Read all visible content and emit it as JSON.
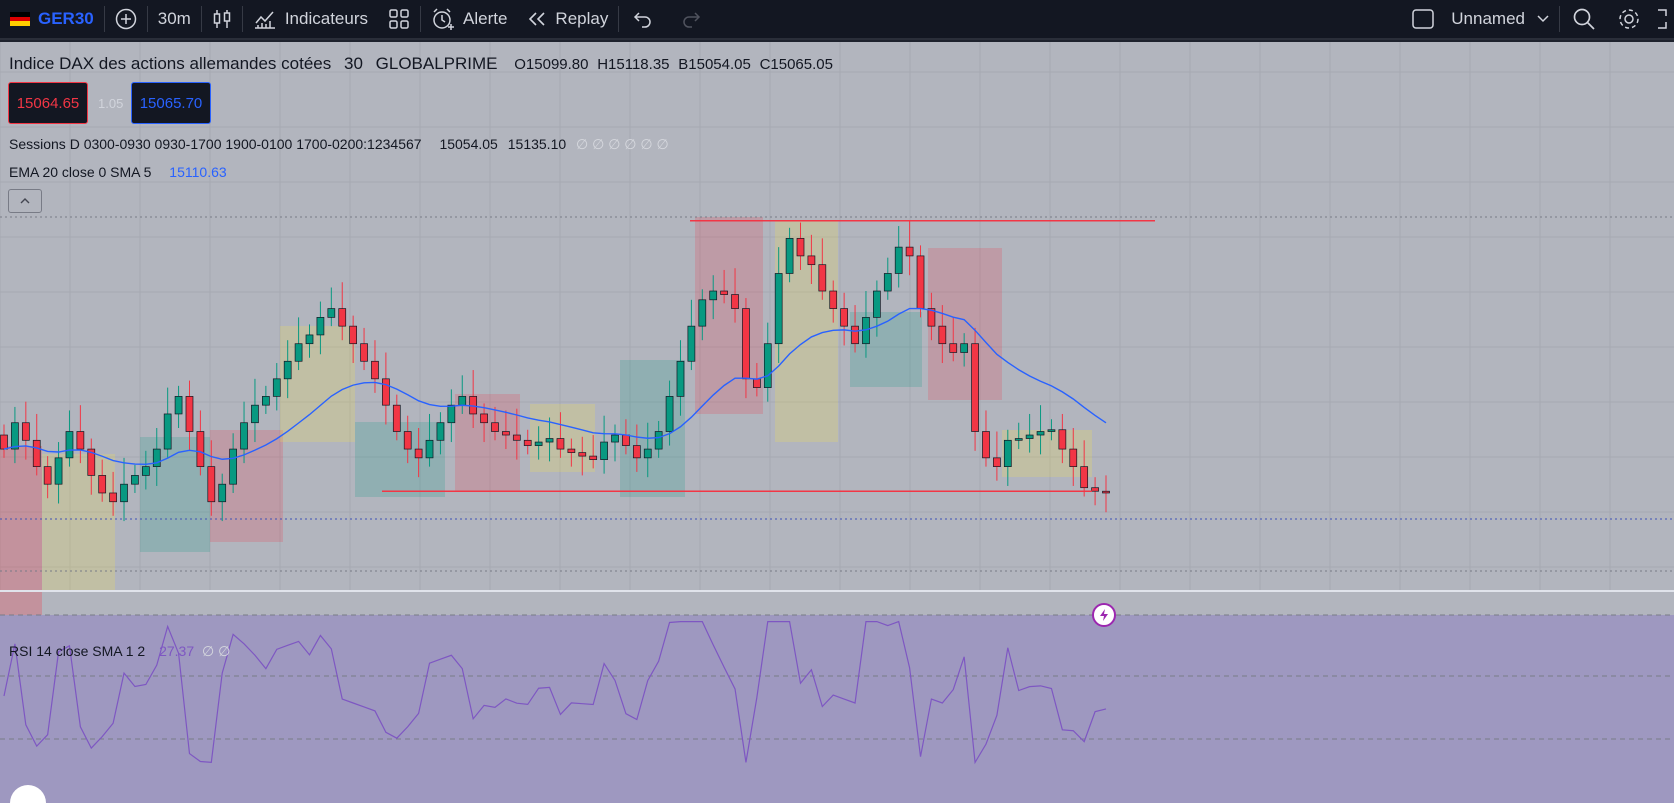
{
  "toolbar": {
    "symbol": "GER30",
    "interval": "30m",
    "indicators_label": "Indicateurs",
    "alert_label": "Alerte",
    "replay_label": "Replay",
    "layout_name": "Unnamed"
  },
  "legend": {
    "title": "Indice DAX des actions allemandes cotées",
    "interval": "30",
    "exchange": "GLOBALPRIME",
    "open": "O15099.80",
    "high": "H15118.35",
    "low": "B15054.05",
    "close": "C15065.05",
    "sell_price": "15064.65",
    "spread": "1.05",
    "buy_price": "15065.70",
    "sessions_label": "Sessions D 0300-0930 0930-1700 1900-0100 1700-0200:1234567",
    "sessions_v1": "15054.05",
    "sessions_v2": "15135.10",
    "sessions_na": "∅ ∅ ∅ ∅ ∅ ∅",
    "ema_label": "EMA 20 close 0 SMA 5",
    "ema_value": "15110.63",
    "collapse_icon": "chevron-up-icon"
  },
  "rsi": {
    "label": "RSI 14 close SMA 1 2",
    "value": "27.37",
    "na": "∅ ∅"
  },
  "colors": {
    "up": "#089981",
    "down": "#f23645",
    "ema": "#2962ff",
    "rsi": "#7e57c2",
    "level_line": "#f23645"
  },
  "chart_data": {
    "type": "candlestick",
    "symbol": "GER30",
    "interval": "30",
    "close_series": [
      15090,
      15105,
      15095,
      15080,
      15070,
      15085,
      15100,
      15090,
      15075,
      15065,
      15060,
      15070,
      15075,
      15080,
      15090,
      15110,
      15120,
      15100,
      15080,
      15060,
      15070,
      15090,
      15105,
      15115,
      15120,
      15130,
      15140,
      15150,
      15155,
      15165,
      15170,
      15160,
      15150,
      15140,
      15130,
      15115,
      15100,
      15090,
      15085,
      15095,
      15105,
      15115,
      15120,
      15110,
      15105,
      15100,
      15098,
      15095,
      15092,
      15094,
      15096,
      15090,
      15088,
      15086,
      15084,
      15094,
      15098,
      15092,
      15085,
      15090,
      15100,
      15120,
      15140,
      15160,
      15175,
      15180,
      15178,
      15170,
      15130,
      15125,
      15150,
      15190,
      15210,
      15200,
      15195,
      15180,
      15170,
      15160,
      15150,
      15165,
      15180,
      15190,
      15205,
      15200,
      15170,
      15160,
      15150,
      15145,
      15150,
      15100,
      15085,
      15080,
      15095,
      15096,
      15098,
      15100,
      15101,
      15090,
      15080,
      15068,
      15066,
      15065
    ],
    "levels": [
      15220,
      15066
    ]
  }
}
